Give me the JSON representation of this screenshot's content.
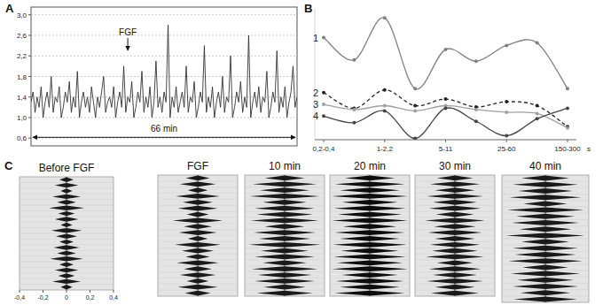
{
  "chart_data": [
    {
      "type": "line",
      "panel": "A",
      "x": [
        0,
        0.5,
        1,
        1.5,
        2,
        2.5,
        3,
        3.5,
        4,
        4.5,
        5,
        5.5,
        6,
        6.5,
        7,
        7.5,
        8,
        8.5,
        9,
        9.5,
        10,
        10.5,
        11,
        11.5,
        12,
        12.5,
        13,
        13.5,
        14,
        14.5,
        15,
        15.5,
        16,
        16.5,
        17,
        17.5,
        18,
        18.5,
        19,
        19.5,
        20,
        20.5,
        21,
        21.5,
        22,
        22.5,
        23,
        23.5,
        24,
        24.5,
        25,
        25.5,
        26,
        26.5,
        27,
        27.5,
        28,
        28.5,
        29,
        29.5,
        30,
        30.5,
        31,
        31.5,
        32,
        32.5,
        33,
        33.5,
        34,
        34.5,
        35,
        35.5,
        36,
        36.5,
        37,
        37.5,
        38,
        38.5,
        39,
        39.5,
        40,
        40.5,
        41,
        41.5,
        42,
        42.5,
        43,
        43.5,
        44,
        44.5,
        45,
        45.5,
        46,
        46.5,
        47,
        47.5,
        48,
        48.5,
        49,
        49.5,
        50,
        50.5,
        51,
        51.5,
        52,
        52.5,
        53,
        53.5,
        54,
        54.5,
        55,
        55.5,
        56,
        56.5,
        57,
        57.5,
        58,
        58.5,
        59,
        59.5,
        60,
        60.5,
        61,
        61.5,
        62,
        62.5,
        63,
        63.5,
        64,
        64.5,
        65,
        65.5,
        66
      ],
      "values": [
        1.3,
        1.5,
        1.1,
        1.4,
        1.2,
        1.6,
        1.0,
        1.3,
        1.5,
        1.2,
        1.8,
        1.1,
        1.4,
        1.3,
        1.6,
        1.0,
        1.2,
        1.5,
        1.3,
        1.7,
        1.1,
        1.4,
        1.2,
        1.9,
        1.0,
        1.3,
        1.5,
        1.2,
        1.4,
        1.1,
        1.6,
        1.3,
        1.0,
        1.4,
        1.2,
        1.5,
        1.8,
        1.1,
        1.3,
        1.4,
        1.2,
        1.6,
        1.0,
        1.3,
        1.5,
        1.2,
        2.0,
        1.1,
        1.4,
        1.3,
        1.7,
        1.0,
        1.2,
        1.5,
        1.3,
        1.9,
        1.1,
        1.4,
        1.2,
        1.6,
        1.0,
        1.3,
        2.1,
        1.2,
        1.4,
        1.1,
        1.5,
        1.3,
        2.8,
        1.0,
        1.4,
        1.2,
        1.6,
        1.1,
        1.3,
        1.5,
        1.2,
        2.0,
        1.1,
        1.4,
        1.3,
        1.7,
        1.0,
        1.2,
        1.5,
        1.3,
        2.4,
        1.1,
        1.4,
        1.2,
        1.6,
        1.0,
        1.3,
        1.5,
        1.2,
        1.8,
        1.1,
        1.4,
        1.3,
        2.2,
        1.0,
        1.2,
        1.5,
        1.3,
        1.7,
        1.1,
        1.4,
        1.2,
        2.6,
        1.0,
        1.3,
        1.5,
        1.2,
        1.6,
        1.1,
        1.4,
        1.3,
        1.9,
        1.0,
        1.2,
        1.5,
        1.3,
        2.3,
        1.1,
        1.4,
        1.2,
        1.6,
        1.0,
        1.3,
        1.5,
        2.0,
        1.2,
        1.4
      ],
      "xlim": [
        0,
        66
      ],
      "ylim": [
        0.45,
        3.15
      ],
      "yticks": [
        {
          "value": 0.6,
          "label": "0,6"
        },
        {
          "value": 1.0,
          "label": "1,0"
        },
        {
          "value": 1.4,
          "label": "1,4"
        },
        {
          "value": 1.8,
          "label": "1,8"
        },
        {
          "value": 2.2,
          "label": "2,2"
        },
        {
          "value": 2.6,
          "label": "2,6"
        },
        {
          "value": 3.0,
          "label": "3,0"
        }
      ],
      "grid": true,
      "tick_labels": "y",
      "color": "#333333",
      "annotations": [
        {
          "text": "FGF",
          "x": 24,
          "y": 2.6
        },
        {
          "text": "66 min",
          "x": 33,
          "y": 0.72
        }
      ]
    },
    {
      "type": "line",
      "panel": "B",
      "categories": [
        "0,2-0,4",
        null,
        "1-2,2",
        null,
        "5-11",
        null,
        "25-60",
        null,
        "150-300"
      ],
      "xlabel": "s",
      "ylim": [
        0,
        10
      ],
      "tick_labels": "x",
      "marker": "circle",
      "series": [
        {
          "name": "1",
          "color": "#808080",
          "line_style": "solid",
          "values": [
            7.8,
            6.1,
            9.3,
            3.9,
            6.9,
            6.0,
            7.2,
            7.4,
            3.9
          ]
        },
        {
          "name": "2",
          "color": "#222222",
          "line_style": "dashed",
          "values": [
            3.6,
            2.4,
            3.8,
            2.6,
            3.1,
            2.5,
            2.9,
            2.6,
            1.0
          ]
        },
        {
          "name": "3",
          "color": "#a0a0a0",
          "line_style": "solid",
          "values": [
            2.7,
            2.3,
            2.6,
            2.2,
            2.6,
            2.3,
            2.1,
            2.0,
            0.9
          ]
        },
        {
          "name": "4",
          "color": "#444444",
          "line_style": "solid",
          "values": [
            1.8,
            1.3,
            2.2,
            0.1,
            2.4,
            1.4,
            0.3,
            1.6,
            2.4
          ]
        }
      ]
    },
    {
      "type": "bar",
      "orientation": "horizontal",
      "panel": "C",
      "title": "Before FGF",
      "categories": [
        null,
        null,
        null,
        null,
        null,
        null,
        null,
        null,
        null,
        null,
        null,
        null,
        null,
        null,
        null,
        null,
        null,
        null,
        null,
        null
      ],
      "values": [
        0.06,
        0.1,
        0.05,
        0.12,
        0.08,
        0.15,
        0.07,
        0.1,
        0.05,
        0.13,
        0.09,
        0.06,
        0.11,
        0.08,
        0.14,
        0.06,
        0.1,
        0.07,
        0.12,
        0.05
      ],
      "xlim": [
        -0.4,
        0.4
      ],
      "xticks": [
        {
          "value": -0.4,
          "label": "-0,4"
        },
        {
          "value": -0.2,
          "label": "-0,2"
        },
        0,
        {
          "value": 0.2,
          "label": "0,2"
        },
        {
          "value": 0.4,
          "label": "0,4"
        }
      ],
      "tick_labels": "x",
      "color": "#1a1a1a"
    },
    {
      "type": "bar",
      "orientation": "horizontal",
      "title": "FGF",
      "categories": [
        null,
        null,
        null,
        null,
        null,
        null,
        null,
        null,
        null,
        null,
        null,
        null,
        null,
        null,
        null,
        null,
        null,
        null,
        null,
        null
      ],
      "values": [
        0.12,
        0.18,
        0.1,
        0.22,
        0.15,
        0.2,
        0.11,
        0.25,
        0.14,
        0.19,
        0.1,
        0.23,
        0.16,
        0.12,
        0.21,
        0.14,
        0.18,
        0.11,
        0.2,
        0.13
      ],
      "xlim": [
        -0.4,
        0.4
      ],
      "tick_labels": false,
      "color": "#1a1a1a"
    },
    {
      "type": "bar",
      "orientation": "horizontal",
      "title": "10 min",
      "categories": [
        null,
        null,
        null,
        null,
        null,
        null,
        null,
        null,
        null,
        null,
        null,
        null,
        null,
        null,
        null,
        null,
        null,
        null,
        null,
        null
      ],
      "values": [
        0.2,
        0.32,
        0.25,
        0.35,
        0.22,
        0.3,
        0.28,
        0.34,
        0.2,
        0.31,
        0.26,
        0.36,
        0.24,
        0.3,
        0.22,
        0.33,
        0.27,
        0.3,
        0.21,
        0.28
      ],
      "xlim": [
        -0.4,
        0.4
      ],
      "tick_labels": false,
      "color": "#1a1a1a"
    },
    {
      "type": "bar",
      "orientation": "horizontal",
      "title": "20 min",
      "categories": [
        null,
        null,
        null,
        null,
        null,
        null,
        null,
        null,
        null,
        null,
        null,
        null,
        null,
        null,
        null,
        null,
        null,
        null,
        null,
        null
      ],
      "values": [
        0.25,
        0.35,
        0.3,
        0.38,
        0.28,
        0.36,
        0.32,
        0.38,
        0.27,
        0.35,
        0.3,
        0.37,
        0.29,
        0.36,
        0.33,
        0.38,
        0.28,
        0.34,
        0.3,
        0.35
      ],
      "xlim": [
        -0.4,
        0.4
      ],
      "tick_labels": false,
      "color": "#0d0d0d"
    },
    {
      "type": "bar",
      "orientation": "horizontal",
      "title": "30 min",
      "categories": [
        null,
        null,
        null,
        null,
        null,
        null,
        null,
        null,
        null,
        null,
        null,
        null,
        null,
        null,
        null,
        null,
        null,
        null,
        null,
        null
      ],
      "values": [
        0.18,
        0.25,
        0.2,
        0.28,
        0.22,
        0.26,
        0.19,
        0.3,
        0.21,
        0.27,
        0.2,
        0.25,
        0.23,
        0.29,
        0.18,
        0.26,
        0.22,
        0.28,
        0.2,
        0.24
      ],
      "xlim": [
        -0.4,
        0.4
      ],
      "tick_labels": false,
      "color": "#1a1a1a"
    },
    {
      "type": "bar",
      "orientation": "horizontal",
      "title": "40 min",
      "categories": [
        null,
        null,
        null,
        null,
        null,
        null,
        null,
        null,
        null,
        null,
        null,
        null,
        null,
        null,
        null,
        null,
        null,
        null,
        null,
        null
      ],
      "values": [
        0.22,
        0.3,
        0.25,
        0.33,
        0.2,
        0.35,
        0.27,
        0.31,
        0.24,
        0.36,
        0.22,
        0.3,
        0.28,
        0.34,
        0.21,
        0.32,
        0.26,
        0.3,
        0.23,
        0.29
      ],
      "xlim": [
        -0.4,
        0.4
      ],
      "tick_labels": false,
      "color": "#1a1a1a"
    }
  ]
}
